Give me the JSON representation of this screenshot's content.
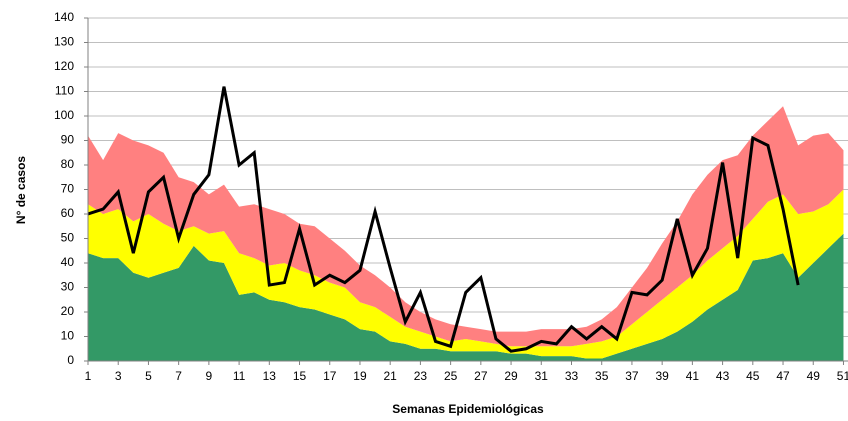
{
  "chart_data": {
    "type": "area",
    "stacked": true,
    "grid": true,
    "x_label": "Semanas Epidemiológicas",
    "y_label": "N° de casos",
    "x": [
      1,
      2,
      3,
      4,
      5,
      6,
      7,
      8,
      9,
      10,
      11,
      12,
      13,
      14,
      15,
      16,
      17,
      18,
      19,
      20,
      21,
      22,
      23,
      24,
      25,
      26,
      27,
      28,
      29,
      30,
      31,
      32,
      33,
      34,
      35,
      36,
      37,
      38,
      39,
      40,
      41,
      42,
      43,
      44,
      45,
      46,
      47,
      48,
      49,
      50,
      51
    ],
    "xlim": [
      1,
      51.3
    ],
    "xticks": [
      1,
      3,
      5,
      7,
      9,
      11,
      13,
      15,
      17,
      19,
      21,
      23,
      25,
      27,
      29,
      31,
      33,
      35,
      37,
      39,
      41,
      43,
      45,
      47,
      49,
      51
    ],
    "ylim": [
      0,
      140
    ],
    "yticks": [
      0,
      10,
      20,
      30,
      40,
      50,
      60,
      70,
      80,
      90,
      100,
      110,
      120,
      130,
      140
    ],
    "series": [
      {
        "color": "#339966",
        "values": [
          44,
          42,
          42,
          36,
          34,
          36,
          38,
          47,
          41,
          40,
          27,
          28,
          25,
          24,
          22,
          21,
          19,
          17,
          13,
          12,
          8,
          7,
          5,
          5,
          4,
          4,
          4,
          4,
          3,
          3,
          2,
          2,
          2,
          1,
          1,
          3,
          5,
          7,
          9,
          12,
          16,
          21,
          25,
          29,
          41,
          42,
          44,
          34,
          40,
          46,
          52
        ]
      },
      {
        "color": "#ffff00",
        "values": [
          20,
          18,
          20,
          21,
          26,
          20,
          15,
          8,
          11,
          13,
          17,
          14,
          14,
          16,
          15,
          14,
          13,
          13,
          11,
          10,
          10,
          7,
          7,
          5,
          4,
          5,
          4,
          3,
          3,
          3,
          4,
          4,
          4,
          6,
          7,
          7,
          10,
          13,
          16,
          18,
          19,
          20,
          21,
          22,
          17,
          23,
          24,
          26,
          21,
          18,
          18
        ]
      },
      {
        "color": "#ff8080",
        "values": [
          28,
          22,
          31,
          33,
          28,
          29,
          22,
          18,
          16,
          19,
          19,
          22,
          23,
          20,
          19,
          20,
          18,
          15,
          15,
          13,
          12,
          10,
          8,
          7,
          7,
          5,
          5,
          5,
          6,
          6,
          7,
          7,
          7,
          7,
          9,
          12,
          15,
          18,
          23,
          27,
          33,
          35,
          36,
          33,
          34,
          33,
          36,
          28,
          31,
          29,
          16
        ]
      },
      {
        "type": "line",
        "color": "#000000",
        "values": [
          60,
          62,
          69,
          44,
          69,
          75,
          50,
          68,
          76,
          112,
          80,
          85,
          31,
          32,
          54,
          31,
          35,
          32,
          37,
          61,
          38,
          16,
          28,
          8,
          6,
          28,
          34,
          9,
          4,
          5,
          8,
          7,
          14,
          9,
          14,
          9,
          28,
          27,
          33,
          58,
          35,
          46,
          81,
          42,
          91,
          88,
          62,
          31,
          null,
          null,
          null
        ]
      }
    ]
  }
}
